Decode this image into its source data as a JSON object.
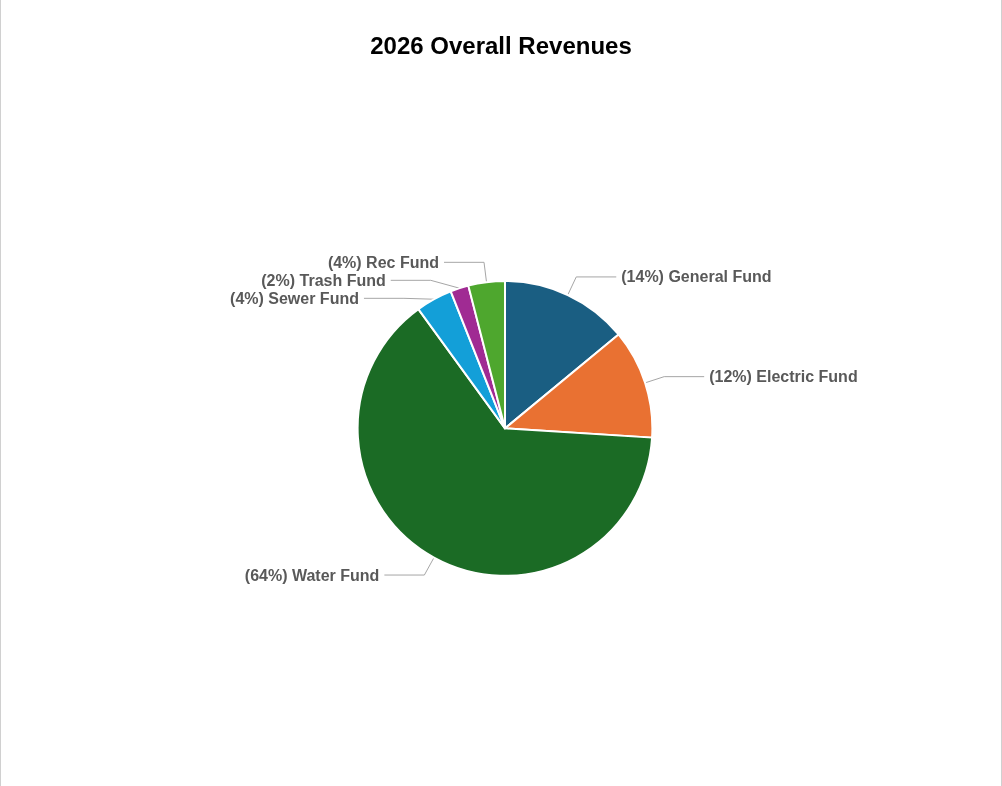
{
  "chart_data": {
    "type": "pie",
    "title": "2026 Overall Revenues",
    "categories": [
      "General Fund",
      "Electric Fund",
      "Water Fund",
      "Sewer Fund",
      "Trash Fund",
      "Rec Fund"
    ],
    "values": [
      14,
      12,
      64,
      4,
      2,
      4
    ],
    "value_labels": [
      "(14%)",
      "(12%)",
      "(64%)",
      "(4%)",
      "(2%)",
      "(4%)"
    ],
    "colors": [
      "#1a5e82",
      "#e97132",
      "#1b6b25",
      "#139fd8",
      "#a02b93",
      "#4ea72e"
    ],
    "legend": false
  }
}
